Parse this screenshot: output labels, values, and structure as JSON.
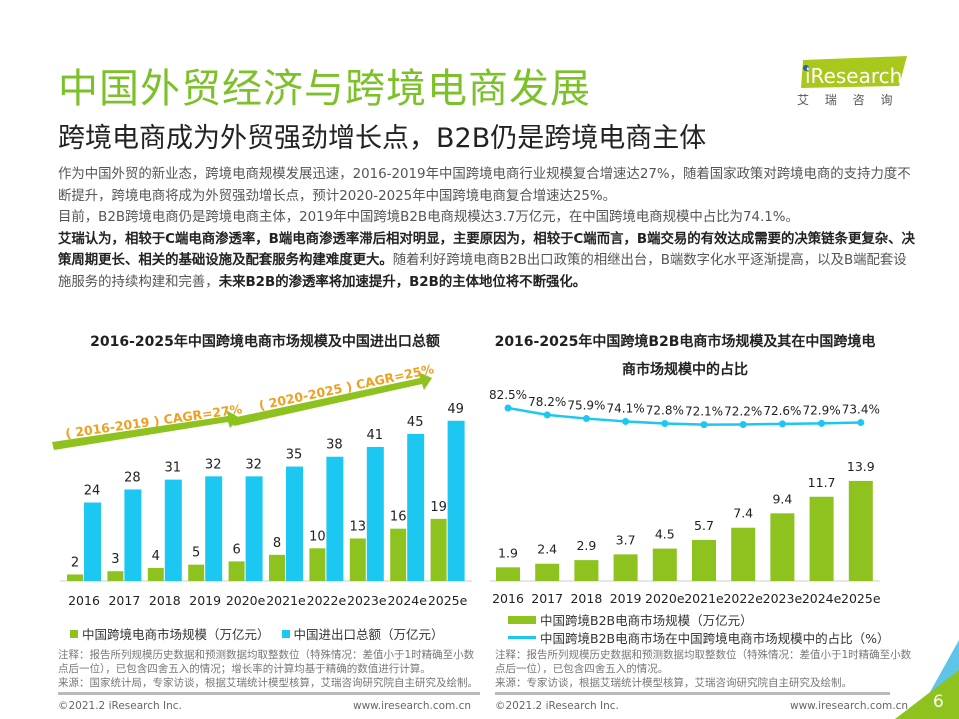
{
  "header": {
    "title": "中国外贸经济与跨境电商发展",
    "subtitle": "跨境电商成为外贸强劲增长点，B2B仍是跨境电商主体",
    "logo_text": "iResearch",
    "logo_cn": "艾 瑞 咨 询"
  },
  "paragraph": [
    {
      "t": "作为中国外贸的新业态，跨境电商规模发展迅速，2016-2019年中国跨境电商行业规模复合增速达27%，随着国家政策对跨境电商的支持力度不断提升，跨境电商将成为外贸强劲增长点，预计2020-2025年中国跨境电商复合增速达25%。",
      "b": false
    },
    {
      "t": "目前，B2B跨境电商仍是跨境电商主体，2019年中国跨境B2B电商规模达3.7万亿元，在中国跨境电商规模中占比为74.1%。",
      "b": false,
      "br": true
    },
    {
      "t": "艾瑞认为，相较于C端电商渗透率，B端电商渗透率滞后相对明显，主要原因为，相较于C端而言，B端交易的有效达成需要的决策链条更复杂、决策周期更长、相关的基础设施及配套服务构建难度更大。",
      "b": true,
      "br": true
    },
    {
      "t": "随着利好跨境电商B2B出口政策的相继出台，B端数字化水平逐渐提高，以及B端配套设施服务的持续构建和完善，",
      "b": false
    },
    {
      "t": "未来B2B的渗透率将加速提升，B2B的主体地位将不断强化。",
      "b": true
    }
  ],
  "chart_data": [
    {
      "type": "bar",
      "title": "2016-2025年中国跨境电商市场规模及中国进出口总额",
      "categories": [
        "2016",
        "2017",
        "2018",
        "2019",
        "2020e",
        "2021e",
        "2022e",
        "2023e",
        "2024e",
        "2025e"
      ],
      "series": [
        {
          "name": "中国跨境电商市场规模（万亿元）",
          "color": "#8dc21f",
          "values": [
            2,
            3,
            4,
            5,
            6,
            8,
            10,
            13,
            16,
            19
          ]
        },
        {
          "name": "中国进出口总额（万亿元）",
          "color": "#1cc7f2",
          "values": [
            24,
            28,
            31,
            32,
            32,
            35,
            38,
            41,
            45,
            49
          ]
        }
      ],
      "annotations": [
        "( 2016-2019 )  CAGR=27%",
        "( 2020-2025 )  CAGR=25%"
      ]
    },
    {
      "type": "bar+line",
      "title": "2016-2025年中国跨境B2B电商市场规模及其在中国跨境电商市场规模中的占比",
      "categories": [
        "2016",
        "2017",
        "2018",
        "2019",
        "2020e",
        "2021e",
        "2022e",
        "2023e",
        "2024e",
        "2025e"
      ],
      "series": [
        {
          "name": "中国跨境B2B电商市场规模（万亿元）",
          "type": "bar",
          "color": "#8dc21f",
          "values": [
            1.9,
            2.4,
            2.9,
            3.7,
            4.5,
            5.7,
            7.4,
            9.4,
            11.7,
            13.9
          ]
        },
        {
          "name": "中国跨境B2B电商市场在中国跨境电商市场规模中的占比（%）",
          "type": "line",
          "color": "#1cc7f2",
          "values": [
            82.5,
            78.2,
            75.9,
            74.1,
            72.8,
            72.1,
            72.2,
            72.6,
            72.9,
            73.4
          ],
          "labels": [
            "82.5%",
            "78.2%",
            "75.9%",
            "74.1%",
            "72.8%",
            "72.1%",
            "72.2%",
            "72.6%",
            "72.9%",
            "73.4%"
          ]
        }
      ]
    }
  ],
  "notes": {
    "left_note": "注释：报告所列规模历史数据和预测数据均取整数位（特殊情况：差值小于1时精确至小数点后一位），已包含四舍五入的情况；增长率的计算均基于精确的数值进行计算。",
    "left_source": "来源：国家统计局，专家访谈，根据艾瑞统计模型核算，艾瑞咨询研究院自主研究及绘制。",
    "right_note": "注释：报告所列规模历史数据和预测数据均取整数位（特殊情况：差值小于1时精确至小数点后一位），已包含四舍五入的情况。",
    "right_source": "来源：专家访谈，根据艾瑞统计模型核算，艾瑞咨询研究院自主研究及绘制。"
  },
  "footer": {
    "copyright": "©2021.2 iResearch Inc.",
    "url": "www.iresearch.com.cn",
    "page": "6"
  }
}
